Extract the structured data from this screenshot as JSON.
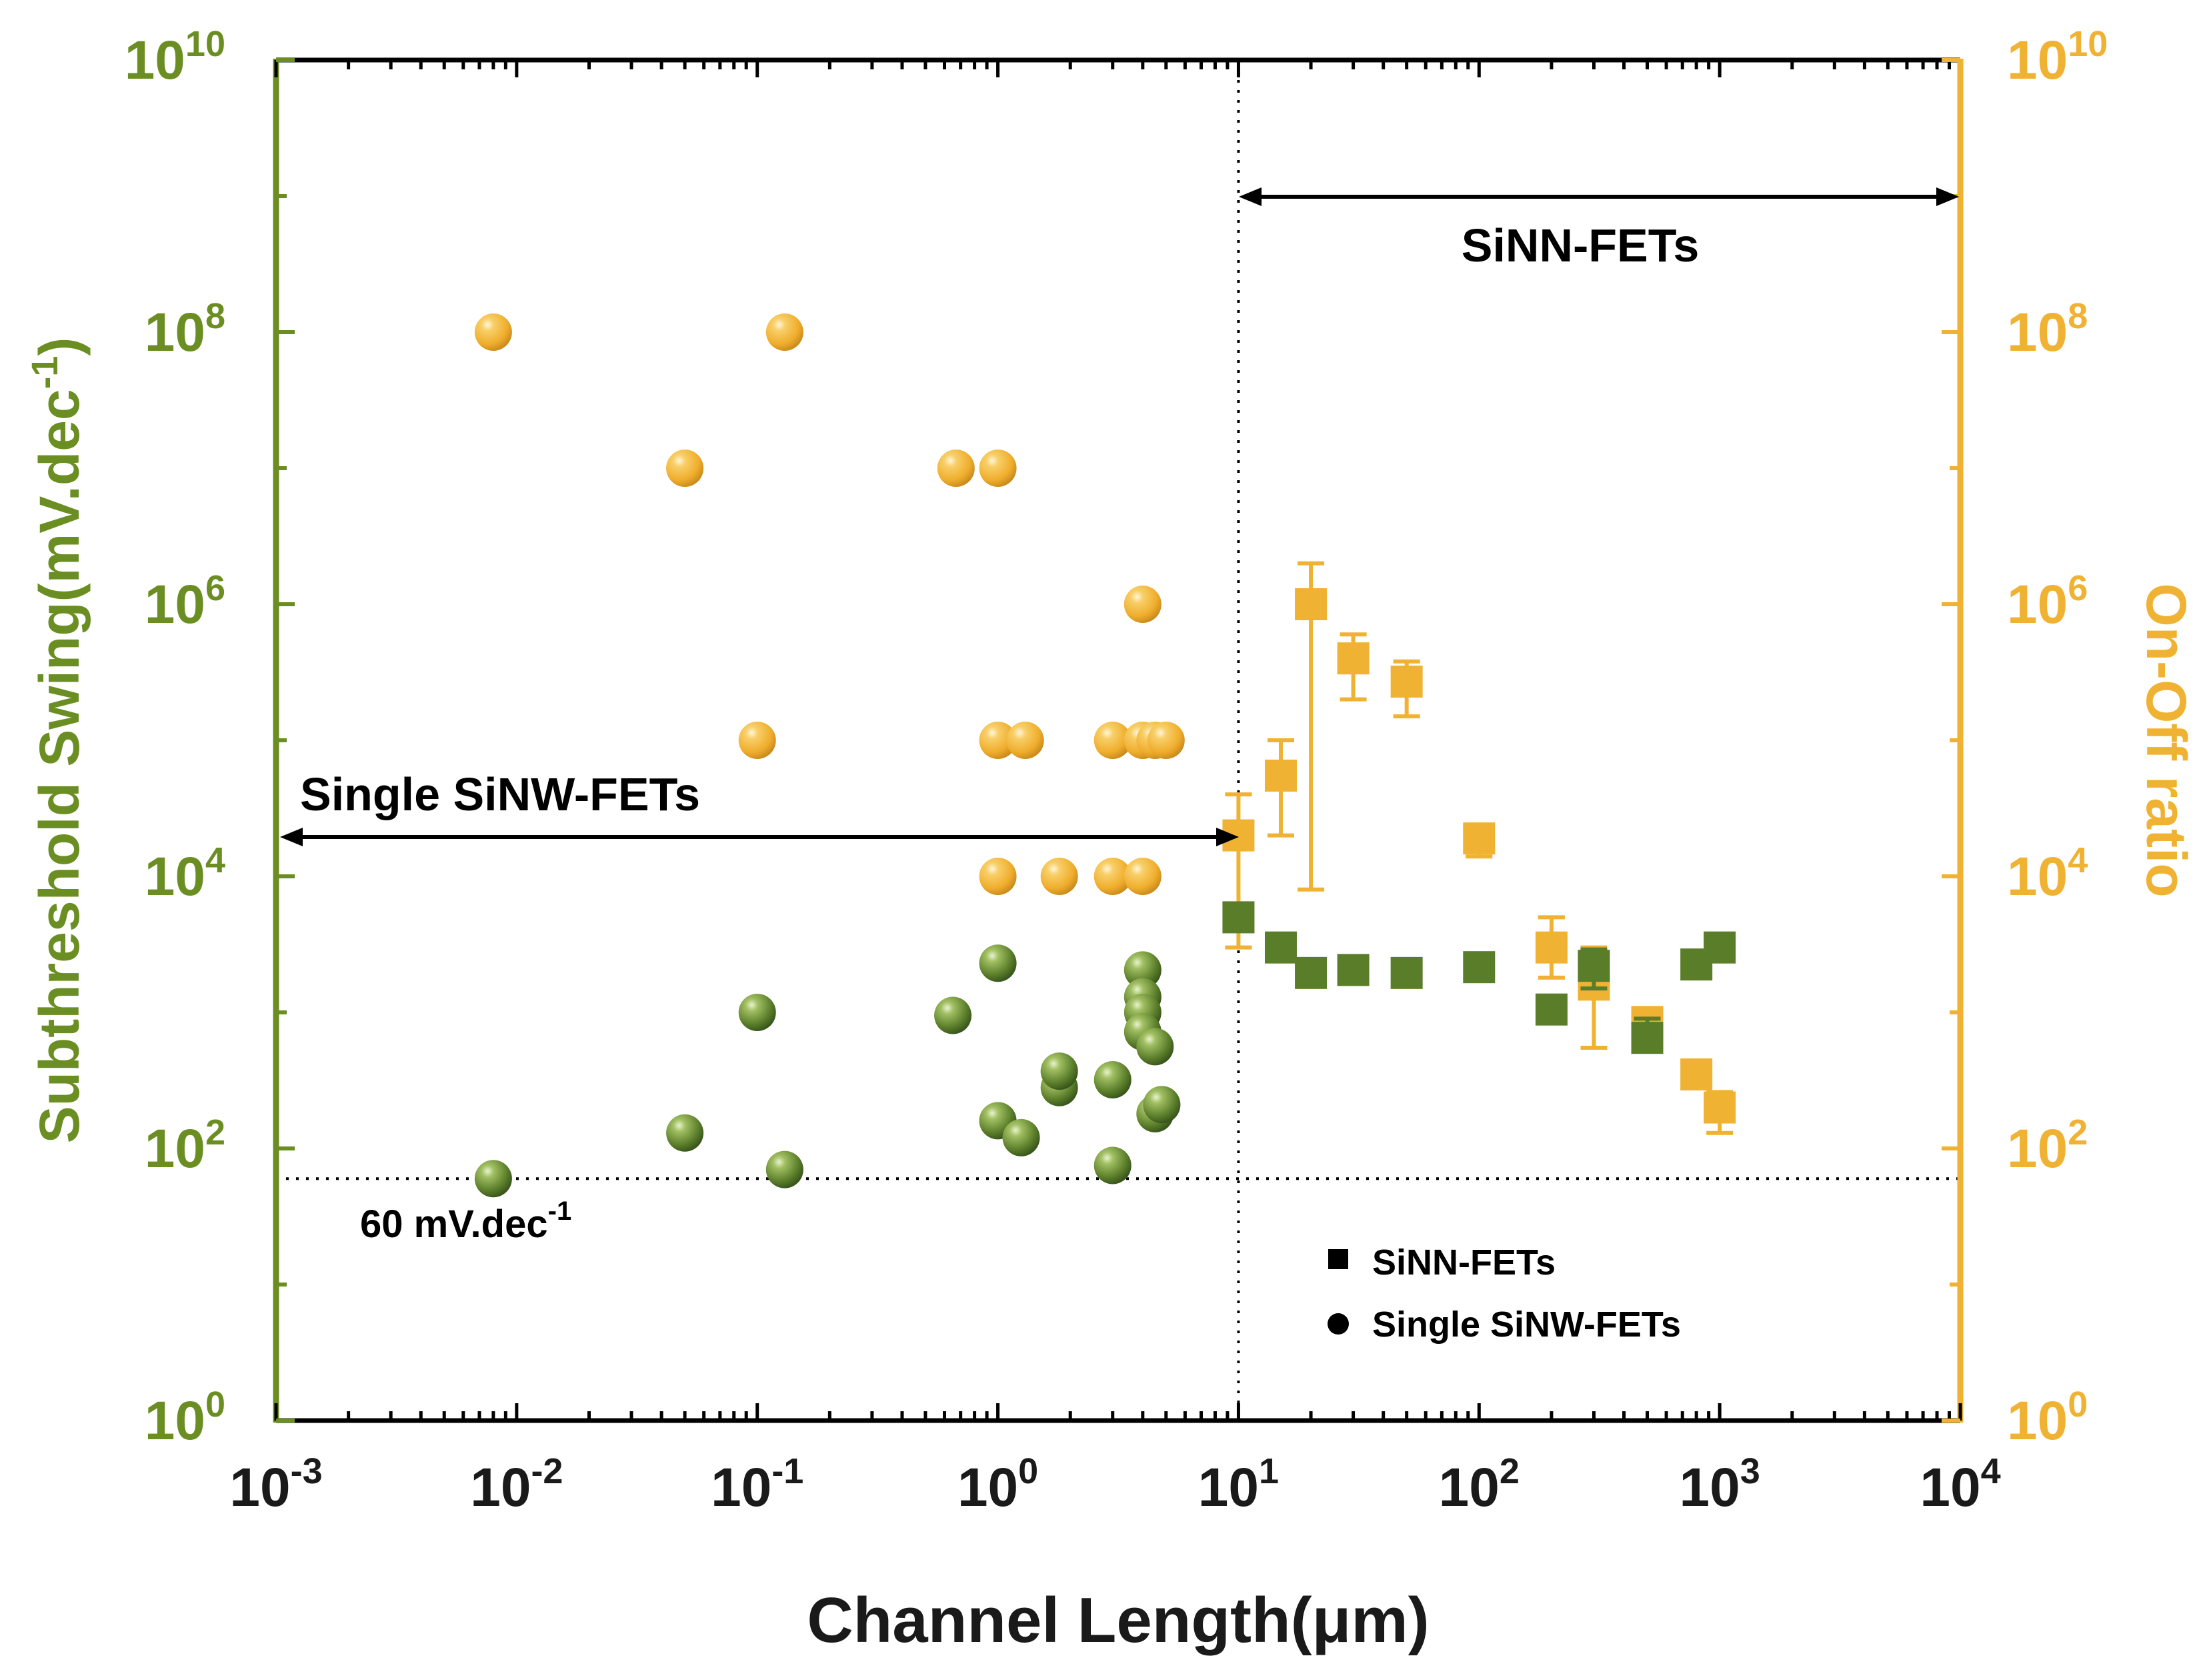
{
  "chart_data": {
    "type": "scatter",
    "xlabel": "Channel Length(μm)",
    "ylabel_left": {
      "main": "Subthreshold Swing(mV.dec",
      "sup": "-1",
      "close": ")"
    },
    "ylabel_right": "On-Off ratio",
    "x_scale": "log",
    "y_scale": "log",
    "xlim": [
      0.001,
      10000
    ],
    "ylim_left": [
      1,
      10000000000
    ],
    "ylim_right": [
      1,
      10000000000
    ],
    "x_ticks": [
      {
        "base": "10",
        "exp": "-3",
        "value": 0.001
      },
      {
        "base": "10",
        "exp": "-2",
        "value": 0.01
      },
      {
        "base": "10",
        "exp": "-1",
        "value": 0.1
      },
      {
        "base": "10",
        "exp": "0",
        "value": 1
      },
      {
        "base": "10",
        "exp": "1",
        "value": 10
      },
      {
        "base": "10",
        "exp": "2",
        "value": 100
      },
      {
        "base": "10",
        "exp": "3",
        "value": 1000
      },
      {
        "base": "10",
        "exp": "4",
        "value": 10000
      }
    ],
    "y_ticks_left": [
      {
        "base": "10",
        "exp": "0",
        "value": 1
      },
      {
        "base": "10",
        "exp": "2",
        "value": 100
      },
      {
        "base": "10",
        "exp": "4",
        "value": 10000
      },
      {
        "base": "10",
        "exp": "6",
        "value": 1000000
      },
      {
        "base": "10",
        "exp": "8",
        "value": 100000000
      },
      {
        "base": "10",
        "exp": "10",
        "value": 10000000000
      }
    ],
    "y_ticks_right": [
      {
        "base": "10",
        "exp": "0",
        "value": 1
      },
      {
        "base": "10",
        "exp": "2",
        "value": 100
      },
      {
        "base": "10",
        "exp": "4",
        "value": 10000
      },
      {
        "base": "10",
        "exp": "6",
        "value": 1000000
      },
      {
        "base": "10",
        "exp": "8",
        "value": 100000000
      },
      {
        "base": "10",
        "exp": "10",
        "value": 10000000000
      }
    ],
    "series": [
      {
        "name": "Single SiNW-FETs SS",
        "axis": "left",
        "marker": "circle",
        "color": "#5a7d2a",
        "points": [
          {
            "x": 0.008,
            "y": 60
          },
          {
            "x": 0.05,
            "y": 130
          },
          {
            "x": 0.1,
            "y": 1000
          },
          {
            "x": 0.13,
            "y": 70
          },
          {
            "x": 0.65,
            "y": 950
          },
          {
            "x": 1.0,
            "y": 2300
          },
          {
            "x": 1.0,
            "y": 160
          },
          {
            "x": 1.25,
            "y": 120
          },
          {
            "x": 1.8,
            "y": 280
          },
          {
            "x": 1.8,
            "y": 370
          },
          {
            "x": 3.0,
            "y": 320
          },
          {
            "x": 3.0,
            "y": 75
          },
          {
            "x": 4.0,
            "y": 2050
          },
          {
            "x": 4.0,
            "y": 1300
          },
          {
            "x": 4.0,
            "y": 1000
          },
          {
            "x": 4.0,
            "y": 720
          },
          {
            "x": 4.5,
            "y": 560
          },
          {
            "x": 4.5,
            "y": 180
          },
          {
            "x": 4.8,
            "y": 210
          }
        ]
      },
      {
        "name": "Single SiNW-FETs On-Off",
        "axis": "right",
        "marker": "circle",
        "color": "#f0b232",
        "points": [
          {
            "x": 0.008,
            "y": 100000000
          },
          {
            "x": 0.13,
            "y": 100000000
          },
          {
            "x": 0.05,
            "y": 10000000
          },
          {
            "x": 0.67,
            "y": 10000000
          },
          {
            "x": 1.0,
            "y": 10000000
          },
          {
            "x": 4.0,
            "y": 1000000
          },
          {
            "x": 0.1,
            "y": 100000
          },
          {
            "x": 1.0,
            "y": 100000
          },
          {
            "x": 1.3,
            "y": 100000
          },
          {
            "x": 3.0,
            "y": 100000
          },
          {
            "x": 4.0,
            "y": 100000
          },
          {
            "x": 4.5,
            "y": 100000
          },
          {
            "x": 5.0,
            "y": 100000
          },
          {
            "x": 1.0,
            "y": 10000
          },
          {
            "x": 1.8,
            "y": 10000
          },
          {
            "x": 3.0,
            "y": 10000
          },
          {
            "x": 4.0,
            "y": 10000
          }
        ]
      },
      {
        "name": "SiNN-FETs SS",
        "axis": "left",
        "marker": "square",
        "color": "#5a7d2a",
        "points": [
          {
            "x": 10,
            "y": 5000,
            "err": [
              4500,
              5600
            ]
          },
          {
            "x": 15,
            "y": 3000,
            "err": [
              2800,
              3300
            ]
          },
          {
            "x": 20,
            "y": 1950,
            "err": [
              1800,
              2100
            ]
          },
          {
            "x": 30,
            "y": 2050,
            "err": [
              1900,
              2200
            ]
          },
          {
            "x": 50,
            "y": 1950,
            "err": [
              1800,
              2100
            ]
          },
          {
            "x": 100,
            "y": 2150,
            "err": [
              2000,
              2350
            ]
          },
          {
            "x": 200,
            "y": 1050,
            "err": [
              950,
              1300
            ]
          },
          {
            "x": 300,
            "y": 2200,
            "err": [
              1500,
              2900
            ]
          },
          {
            "x": 500,
            "y": 650,
            "err": [
              600,
              900
            ]
          },
          {
            "x": 800,
            "y": 2250,
            "err": [
              2100,
              2400
            ]
          },
          {
            "x": 1000,
            "y": 3000,
            "err": [
              2800,
              3300
            ]
          }
        ]
      },
      {
        "name": "SiNN-FETs On-Off",
        "axis": "right",
        "marker": "square",
        "color": "#f0b232",
        "points": [
          {
            "x": 10,
            "y": 20000,
            "err": [
              3000,
              40000
            ]
          },
          {
            "x": 15,
            "y": 55000,
            "err": [
              20000,
              100000
            ]
          },
          {
            "x": 20,
            "y": 1000000,
            "err": [
              8000,
              2000000
            ]
          },
          {
            "x": 30,
            "y": 400000,
            "err": [
              200000,
              600000
            ]
          },
          {
            "x": 50,
            "y": 270000,
            "err": [
              150000,
              380000
            ]
          },
          {
            "x": 100,
            "y": 19000,
            "err": [
              14000,
              23000
            ]
          },
          {
            "x": 200,
            "y": 3000,
            "err": [
              1800,
              5000
            ]
          },
          {
            "x": 300,
            "y": 1600,
            "err": [
              550,
              3000
            ]
          },
          {
            "x": 500,
            "y": 850,
            "err": [
              700,
              1050
            ]
          },
          {
            "x": 800,
            "y": 350,
            "err": [
              300,
              420
            ]
          },
          {
            "x": 1000,
            "y": 200,
            "err": [
              130,
              260
            ]
          }
        ]
      }
    ],
    "reference_lines": {
      "ss_limit_value": 60,
      "boundary_x": 10
    },
    "annotations": {
      "ss_limit_label": {
        "main": "60 mV.dec",
        "sup": "-1"
      },
      "sinn_range_label": "SiNN-FETs",
      "sinw_range_label": "Single SiNW-FETs"
    },
    "legend": {
      "position": "bottom-right",
      "entries": [
        {
          "label": "SiNN-FETs",
          "marker": "square"
        },
        {
          "label": "Single SiNW-FETs",
          "marker": "circle"
        }
      ]
    }
  },
  "colors": {
    "left_axis": "#6b8e23",
    "right_axis": "#f0b232",
    "axis_black": "#000000"
  }
}
